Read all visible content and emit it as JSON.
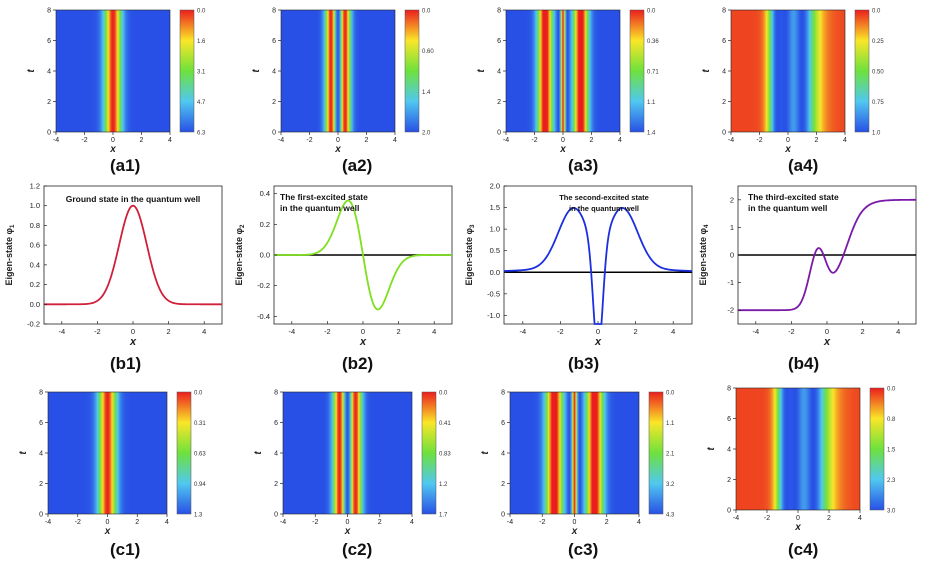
{
  "figure": {
    "captions": [
      "(a1)",
      "(a2)",
      "(a3)",
      "(a4)",
      "(b1)",
      "(b2)",
      "(b3)",
      "(b4)",
      "(c1)",
      "(c2)",
      "(c3)",
      "(c4)"
    ]
  },
  "chart_data": [
    {
      "id": "a1",
      "type": "heatmap",
      "xlabel": "x",
      "ylabel": "t",
      "xlim": [
        -4,
        4
      ],
      "ylim": [
        0,
        8
      ],
      "xticks": [
        "-4",
        "-2",
        "0",
        "2",
        "4"
      ],
      "yticks": [
        "0",
        "2",
        "4",
        "6",
        "8"
      ],
      "colorbar_ticks": [
        "0.0",
        "1.6",
        "3.1",
        "4.7",
        "6.3"
      ],
      "profile": "ground"
    },
    {
      "id": "a2",
      "type": "heatmap",
      "xlabel": "x",
      "ylabel": "t",
      "xlim": [
        -4,
        4
      ],
      "ylim": [
        0,
        8
      ],
      "xticks": [
        "-4",
        "-2",
        "0",
        "2",
        "4"
      ],
      "yticks": [
        "0",
        "2",
        "4",
        "6",
        "8"
      ],
      "colorbar_ticks": [
        "0.0",
        "0.60",
        "1.4",
        "2.0"
      ],
      "profile": "first"
    },
    {
      "id": "a3",
      "type": "heatmap",
      "xlabel": "x",
      "ylabel": "t",
      "xlim": [
        -4,
        4
      ],
      "ylim": [
        0,
        8
      ],
      "xticks": [
        "-4",
        "-2",
        "0",
        "2",
        "4"
      ],
      "yticks": [
        "0",
        "2",
        "4",
        "6",
        "8"
      ],
      "colorbar_ticks": [
        "0.0",
        "0.36",
        "0.71",
        "1.1",
        "1.4"
      ],
      "profile": "second"
    },
    {
      "id": "a4",
      "type": "heatmap",
      "xlabel": "x",
      "ylabel": "t",
      "xlim": [
        -4,
        4
      ],
      "ylim": [
        0,
        8
      ],
      "xticks": [
        "-4",
        "-2",
        "0",
        "2",
        "4"
      ],
      "yticks": [
        "0",
        "2",
        "4",
        "6",
        "8"
      ],
      "colorbar_ticks": [
        "0.0",
        "0.25",
        "0.50",
        "0.75",
        "1.0"
      ],
      "profile": "third"
    },
    {
      "id": "b1",
      "type": "line",
      "annotation": [
        "Ground state in the quantum well"
      ],
      "xlabel": "x",
      "ylabel": "Eigen-state φ",
      "ylabel_sub": "1",
      "xlim": [
        -5,
        5
      ],
      "ylim": [
        -0.2,
        1.2
      ],
      "xticks": [
        -4,
        -2,
        0,
        2,
        4
      ],
      "yticks": [
        -0.2,
        0.0,
        0.2,
        0.4,
        0.6,
        0.8,
        1.0,
        1.2
      ],
      "ytick_labels": [
        "-0.2",
        "0.0",
        "0.2",
        "0.4",
        "0.6",
        "0.8",
        "1.0",
        "1.2"
      ],
      "zero_line": false,
      "color": "#d0203a",
      "fn": "ground"
    },
    {
      "id": "b2",
      "type": "line",
      "annotation": [
        "The first-excited state",
        "in the quantum well"
      ],
      "xlabel": "x",
      "ylabel": "Eigen-state φ",
      "ylabel_sub": "2",
      "xlim": [
        -5,
        5
      ],
      "ylim": [
        -0.45,
        0.45
      ],
      "xticks": [
        -4,
        -2,
        0,
        2,
        4
      ],
      "yticks": [
        -0.4,
        -0.2,
        0.0,
        0.2,
        0.4
      ],
      "ytick_labels": [
        "-0.4",
        "-0.2",
        "0.0",
        "0.2",
        "0.4"
      ],
      "zero_line": true,
      "color": "#7ee01e",
      "fn": "first"
    },
    {
      "id": "b3",
      "type": "line",
      "annotation": [
        "The second-excited state",
        "in the quantum well"
      ],
      "xlabel": "x",
      "ylabel": "Eigen-state φ",
      "ylabel_sub": "3",
      "xlim": [
        -5,
        5
      ],
      "ylim": [
        -1.2,
        2.0
      ],
      "xticks": [
        -4,
        -2,
        0,
        2,
        4
      ],
      "yticks": [
        -1.0,
        -0.5,
        0.0,
        0.5,
        1.0,
        1.5,
        2.0
      ],
      "ytick_labels": [
        "-1.0",
        "-0.5",
        "0.0",
        "0.5",
        "1.0",
        "1.5",
        "2.0"
      ],
      "zero_line": true,
      "color": "#1b2fe0",
      "fn": "second"
    },
    {
      "id": "b4",
      "type": "line",
      "annotation": [
        "The third-excited state",
        "in the quantum well"
      ],
      "xlabel": "x",
      "ylabel": "Eigen-state φ",
      "ylabel_sub": "4",
      "xlim": [
        -5,
        5
      ],
      "ylim": [
        -2.5,
        2.5
      ],
      "xticks": [
        -4,
        -2,
        0,
        2,
        4
      ],
      "yticks": [
        -2,
        -1,
        0,
        1,
        2
      ],
      "ytick_labels": [
        "-2",
        "-1",
        "0",
        "1",
        "2"
      ],
      "zero_line": true,
      "color": "#7a1aa8",
      "fn": "third"
    },
    {
      "id": "c1",
      "type": "heatmap",
      "xlabel": "x",
      "ylabel": "t",
      "xlim": [
        -4,
        4
      ],
      "ylim": [
        0,
        8
      ],
      "xticks": [
        "-4",
        "-2",
        "0",
        "2",
        "4"
      ],
      "yticks": [
        "0",
        "2",
        "4",
        "6",
        "8"
      ],
      "colorbar_ticks": [
        "0.0",
        "0.31",
        "0.63",
        "0.94",
        "1.3"
      ],
      "profile": "ground"
    },
    {
      "id": "c2",
      "type": "heatmap",
      "xlabel": "x",
      "ylabel": "t",
      "xlim": [
        -4,
        4
      ],
      "ylim": [
        0,
        8
      ],
      "xticks": [
        "-4",
        "-2",
        "0",
        "2",
        "4"
      ],
      "yticks": [
        "0",
        "2",
        "4",
        "6",
        "8"
      ],
      "colorbar_ticks": [
        "0.0",
        "0.41",
        "0.83",
        "1.2",
        "1.7"
      ],
      "profile": "first"
    },
    {
      "id": "c3",
      "type": "heatmap",
      "xlabel": "x",
      "ylabel": "t",
      "xlim": [
        -4,
        4
      ],
      "ylim": [
        0,
        8
      ],
      "xticks": [
        "-4",
        "-2",
        "0",
        "2",
        "4"
      ],
      "yticks": [
        "0",
        "2",
        "4",
        "6",
        "8"
      ],
      "colorbar_ticks": [
        "0.0",
        "1.1",
        "2.1",
        "3.2",
        "4.3"
      ],
      "profile": "second"
    },
    {
      "id": "c4",
      "type": "heatmap",
      "xlabel": "x",
      "ylabel": "t",
      "xlim": [
        -4,
        4
      ],
      "ylim": [
        0,
        8
      ],
      "xticks": [
        "-4",
        "-2",
        "0",
        "2",
        "4"
      ],
      "yticks": [
        "0",
        "2",
        "4",
        "6",
        "8"
      ],
      "colorbar_ticks": [
        "0.0",
        "0.8",
        "1.5",
        "2.3",
        "3.0"
      ],
      "profile": "third"
    }
  ]
}
